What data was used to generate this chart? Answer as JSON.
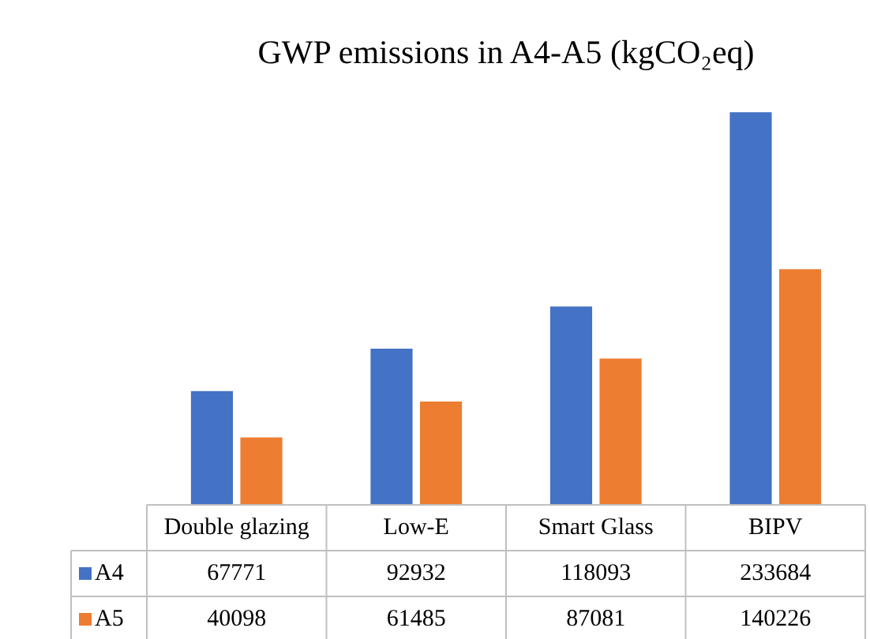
{
  "chart_data": {
    "type": "bar",
    "title": "GWP emissions in A4-A5 (kgCO₂eq)",
    "categories": [
      "Double glazing",
      "Low-E",
      "Smart Glass",
      "BIPV"
    ],
    "series": [
      {
        "name": "A4",
        "color": "#4472c4",
        "values": [
          67771,
          92932,
          118093,
          233684
        ]
      },
      {
        "name": "A5",
        "color": "#ed7d31",
        "values": [
          40098,
          61485,
          87081,
          140226
        ]
      }
    ],
    "tick_labels": false,
    "data_labels": true,
    "legend": "bottom",
    "grid": false
  }
}
